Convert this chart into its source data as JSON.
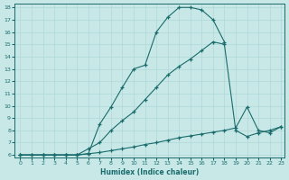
{
  "xlabel": "Humidex (Indice chaleur)",
  "bg_color": "#c8e8e8",
  "line_color": "#1a6b6b",
  "grid_color": "#b0d8d8",
  "xlim": [
    -0.5,
    23.3
  ],
  "ylim": [
    5.8,
    18.3
  ],
  "xticks": [
    0,
    1,
    2,
    3,
    4,
    5,
    6,
    7,
    8,
    9,
    10,
    11,
    12,
    13,
    14,
    15,
    16,
    17,
    18,
    19,
    20,
    21,
    22,
    23
  ],
  "yticks": [
    6,
    7,
    8,
    9,
    10,
    11,
    12,
    13,
    14,
    15,
    16,
    17,
    18
  ],
  "curve1_x": [
    0,
    1,
    2,
    3,
    4,
    5,
    6,
    7,
    8,
    9,
    10,
    11,
    12,
    13,
    14,
    15,
    16,
    17,
    18
  ],
  "curve1_y": [
    6.0,
    6.0,
    6.0,
    6.0,
    6.0,
    6.0,
    6.1,
    8.5,
    9.9,
    11.5,
    13.0,
    13.3,
    16.0,
    17.2,
    18.0,
    18.0,
    17.8,
    17.0,
    15.2
  ],
  "curve2_x": [
    0,
    2,
    3,
    4,
    5,
    6,
    7,
    8,
    9,
    10,
    11,
    12,
    13,
    14,
    15,
    16,
    17,
    18,
    19,
    20,
    21,
    22,
    23
  ],
  "curve2_y": [
    6.0,
    6.0,
    6.0,
    6.0,
    6.0,
    6.5,
    7.0,
    8.0,
    8.8,
    9.5,
    10.5,
    11.5,
    12.5,
    13.2,
    13.8,
    14.5,
    15.2,
    15.0,
    8.0,
    7.5,
    7.8,
    8.0,
    8.3
  ],
  "curve3_x": [
    0,
    1,
    2,
    3,
    4,
    5,
    6,
    7,
    8,
    9,
    10,
    11,
    12,
    13,
    14,
    15,
    16,
    17,
    18,
    19,
    20,
    21,
    22,
    23
  ],
  "curve3_y": [
    6.0,
    6.0,
    6.0,
    6.0,
    6.0,
    6.0,
    6.1,
    6.2,
    6.35,
    6.5,
    6.65,
    6.85,
    7.0,
    7.2,
    7.4,
    7.55,
    7.7,
    7.85,
    8.0,
    8.2,
    9.9,
    8.0,
    7.8,
    8.3
  ]
}
